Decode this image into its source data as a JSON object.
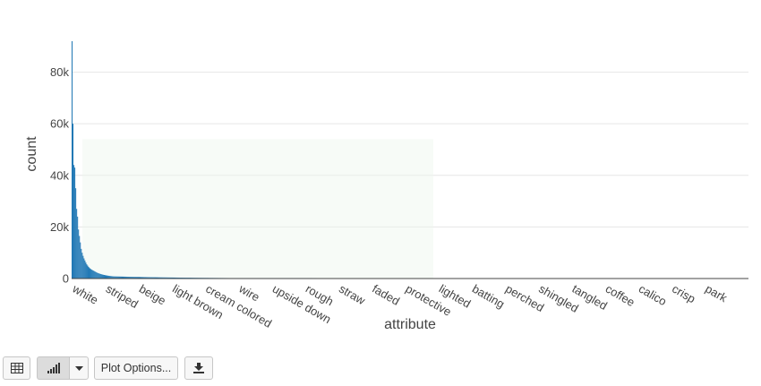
{
  "chart_data": {
    "type": "bar",
    "xlabel": "attribute",
    "ylabel": "count",
    "ylim": [
      0,
      92000
    ],
    "yticks": [
      0,
      20000,
      40000,
      60000,
      80000
    ],
    "ytick_labels": [
      "0",
      "20k",
      "40k",
      "60k",
      "80k"
    ],
    "grid": true,
    "bar_color": "#1f77b4",
    "category_count": 736,
    "x_tick_labels": [
      "white",
      "striped",
      "beige",
      "light brown",
      "cream colored",
      "wire",
      "upside down",
      "rough",
      "straw",
      "faded",
      "protective",
      "lighted",
      "batting",
      "perched",
      "shingled",
      "tangled",
      "coffee",
      "calico",
      "crisp",
      "park"
    ],
    "leading_values": [
      92000,
      60000,
      44000,
      43000,
      35000,
      27000,
      24000,
      19000,
      16500,
      14000,
      11500,
      10000,
      8800,
      7800,
      7000,
      6200,
      5500,
      5000,
      4500,
      4100,
      3800,
      3500,
      3300,
      3100,
      2900,
      2700,
      2500,
      2300,
      2150,
      2000,
      1880,
      1760,
      1650,
      1550,
      1460,
      1380,
      1300,
      1230,
      1170,
      1110,
      1060,
      1010,
      960,
      920,
      880,
      840
    ]
  },
  "toolbar": {
    "table_icon": "table-icon",
    "bar_icon": "bar-chart-icon",
    "caret_icon": "caret-down-icon",
    "plot_options_label": "Plot Options...",
    "download_icon": "download-icon"
  }
}
